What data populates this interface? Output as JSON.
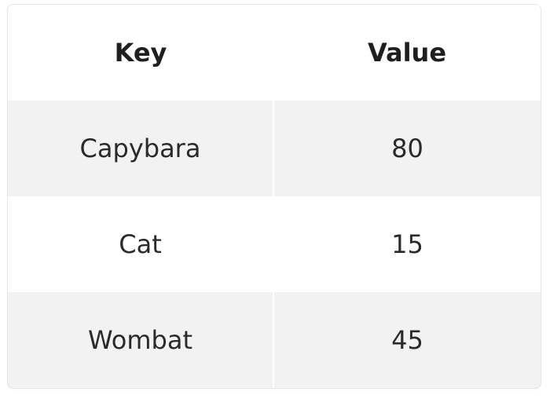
{
  "table": {
    "headers": {
      "key": "Key",
      "value": "Value"
    },
    "rows": [
      {
        "key": "Capybara",
        "value": "80"
      },
      {
        "key": "Cat",
        "value": "15"
      },
      {
        "key": "Wombat",
        "value": "45"
      }
    ],
    "colors": {
      "header_bg": "#ffffff",
      "shaded_row_bg": "#f2f2f2",
      "plain_row_bg": "#ffffff",
      "border": "#e6e6e6",
      "text": "#262626"
    }
  }
}
